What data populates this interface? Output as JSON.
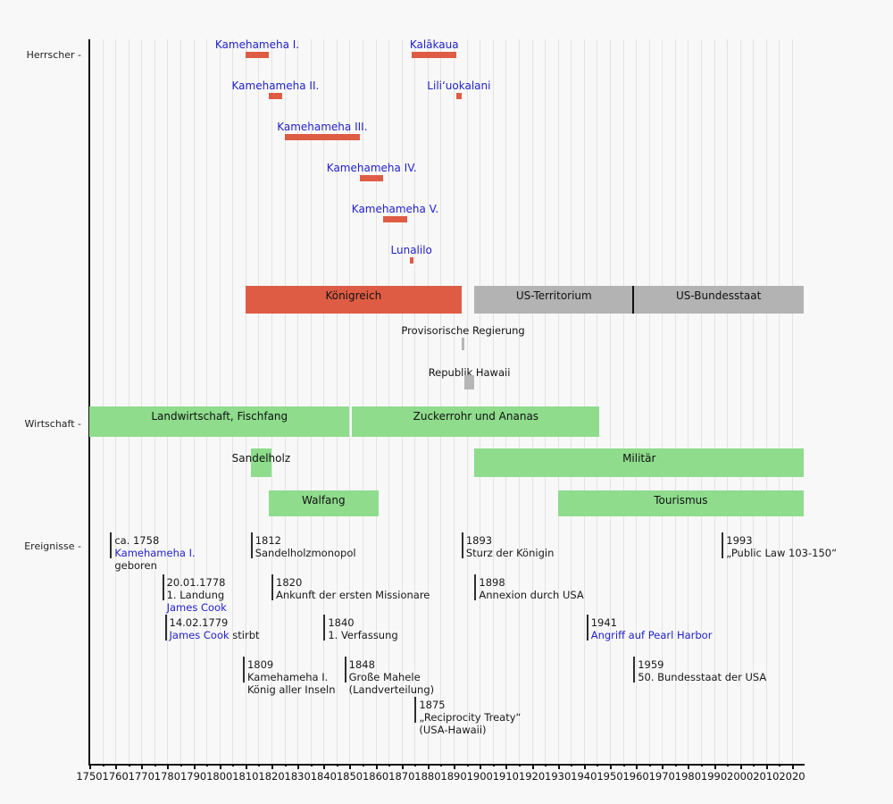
{
  "chart_data": {
    "type": "bar",
    "variant": "history-timeline-gantt",
    "language": "de",
    "grid": "on",
    "colors": {
      "background": "#f8f8f8",
      "gridline": "#e3e3e3",
      "red_bar": "#df5c44",
      "gray_bar": "#b3b3b3",
      "small_gray_bar": "#b6b6b6",
      "green_bar": "#8edc8c",
      "link_blue": "#2222cc",
      "text": "#191919"
    },
    "x_axis": {
      "start_year": 1750,
      "end_year": 2024,
      "major_tick_step": 10,
      "minor_tick_step": 5,
      "tick_labels": [
        "1750",
        "1760",
        "1770",
        "1780",
        "1790",
        "1800",
        "1810",
        "1820",
        "1830",
        "1840",
        "1850",
        "1860",
        "1870",
        "1880",
        "1890",
        "1900",
        "1910",
        "1920",
        "1930",
        "1940",
        "1950",
        "1960",
        "1970",
        "1980",
        "1990",
        "2000",
        "2010",
        "2020"
      ]
    },
    "sections": [
      {
        "label": "Herrscher -"
      },
      {
        "label": "Wirtschaft -"
      },
      {
        "label": "Ereignisse -"
      }
    ],
    "rulers": [
      {
        "name": "Kamehameha I.",
        "start": 1810,
        "end": 1819,
        "row": 0
      },
      {
        "name": "Kamehameha II.",
        "start": 1819,
        "end": 1824,
        "row": 1
      },
      {
        "name": "Kamehameha III.",
        "start": 1825,
        "end": 1854,
        "row": 2
      },
      {
        "name": "Kamehameha IV.",
        "start": 1854,
        "end": 1863,
        "row": 3
      },
      {
        "name": "Kamehameha V.",
        "start": 1863,
        "end": 1872,
        "row": 4
      },
      {
        "name": "Lunalilo",
        "start": 1873,
        "end": 1874.5,
        "row": 5
      },
      {
        "name": "Kalākaua",
        "start": 1874,
        "end": 1891,
        "row": 0
      },
      {
        "name": "Liliʻuokalani",
        "start": 1891,
        "end": 1893,
        "row": 1
      }
    ],
    "status_bars": [
      {
        "label": "Königreich",
        "start": 1810,
        "end": 1893,
        "color": "red_bar"
      },
      {
        "label": "US-Territorium",
        "start": 1898,
        "end": 1959,
        "color": "gray_bar"
      },
      {
        "label": "US-Bundesstaat",
        "start": 1959,
        "end": 2024.5,
        "color": "gray_bar"
      }
    ],
    "sub_status_bars": [
      {
        "label": "Provisorische Regierung",
        "start": 1893,
        "end": 1894
      },
      {
        "label": "Republik Hawaii",
        "start": 1894,
        "end": 1898
      }
    ],
    "economy_bars": [
      {
        "label": "Landwirtschaft, Fischfang",
        "start": 1750,
        "end": 1850,
        "row": 0
      },
      {
        "label": "Zuckerrohr und Ananas",
        "start": 1851,
        "end": 1946,
        "row": 0
      },
      {
        "label": "Sandelholz",
        "start": 1812,
        "end": 1820,
        "row": 1
      },
      {
        "label": "Militär",
        "start": 1898,
        "end": 2024.5,
        "row": 1
      },
      {
        "label": "Walfang",
        "start": 1819,
        "end": 1861,
        "row": 2
      },
      {
        "label": "Tourismus",
        "start": 1930,
        "end": 2024.5,
        "row": 2
      }
    ],
    "events": [
      {
        "year": 1758,
        "row": 0,
        "lines": [
          [
            {
              "t": "ca. 1758"
            }
          ],
          [
            {
              "t": "Kamehameha I.",
              "link": true
            }
          ],
          [
            {
              "t": "geboren"
            }
          ]
        ]
      },
      {
        "year": 1812,
        "row": 0,
        "lines": [
          [
            {
              "t": "1812"
            }
          ],
          [
            {
              "t": "Sandelholzmonopol"
            }
          ]
        ]
      },
      {
        "year": 1893,
        "row": 0,
        "lines": [
          [
            {
              "t": "1893"
            }
          ],
          [
            {
              "t": "Sturz der Königin"
            }
          ]
        ]
      },
      {
        "year": 1993,
        "row": 0,
        "lines": [
          [
            {
              "t": "1993"
            }
          ],
          [
            {
              "t": "„Public Law 103-150“"
            }
          ]
        ]
      },
      {
        "year": 1778,
        "row": 1,
        "lines": [
          [
            {
              "t": "20.01.1778"
            }
          ],
          [
            {
              "t": "1. Landung"
            }
          ],
          [
            {
              "t": "James Cook",
              "link": true
            }
          ]
        ]
      },
      {
        "year": 1820,
        "row": 1,
        "lines": [
          [
            {
              "t": "1820"
            }
          ],
          [
            {
              "t": "Ankunft der ersten Missionare"
            }
          ]
        ]
      },
      {
        "year": 1898,
        "row": 1,
        "lines": [
          [
            {
              "t": "1898"
            }
          ],
          [
            {
              "t": "Annexion durch USA"
            }
          ]
        ]
      },
      {
        "year": 1779,
        "row": 2,
        "lines": [
          [
            {
              "t": "14.02.1779"
            }
          ],
          [
            {
              "t": "James Cook",
              "link": true
            },
            {
              "t": " stirbt"
            }
          ]
        ]
      },
      {
        "year": 1840,
        "row": 2,
        "lines": [
          [
            {
              "t": "1840"
            }
          ],
          [
            {
              "t": "1. Verfassung"
            }
          ]
        ]
      },
      {
        "year": 1941,
        "row": 2,
        "lines": [
          [
            {
              "t": "1941"
            }
          ],
          [
            {
              "t": "Angriff auf Pearl Harbor",
              "link": true
            }
          ]
        ]
      },
      {
        "year": 1809,
        "row": 3,
        "lines": [
          [
            {
              "t": "1809"
            }
          ],
          [
            {
              "t": "Kamehameha I."
            }
          ],
          [
            {
              "t": "König aller Inseln"
            }
          ]
        ]
      },
      {
        "year": 1848,
        "row": 3,
        "lines": [
          [
            {
              "t": "1848"
            }
          ],
          [
            {
              "t": "Große Mahele"
            }
          ],
          [
            {
              "t": "(Landverteilung)"
            }
          ]
        ]
      },
      {
        "year": 1959,
        "row": 3,
        "lines": [
          [
            {
              "t": "1959"
            }
          ],
          [
            {
              "t": "50. Bundesstaat der USA"
            }
          ]
        ]
      },
      {
        "year": 1875,
        "row": 4,
        "lines": [
          [
            {
              "t": "1875"
            }
          ],
          [
            {
              "t": "„Reciprocity Treaty“"
            }
          ],
          [
            {
              "t": "(USA-Hawaii)"
            }
          ]
        ]
      }
    ]
  }
}
